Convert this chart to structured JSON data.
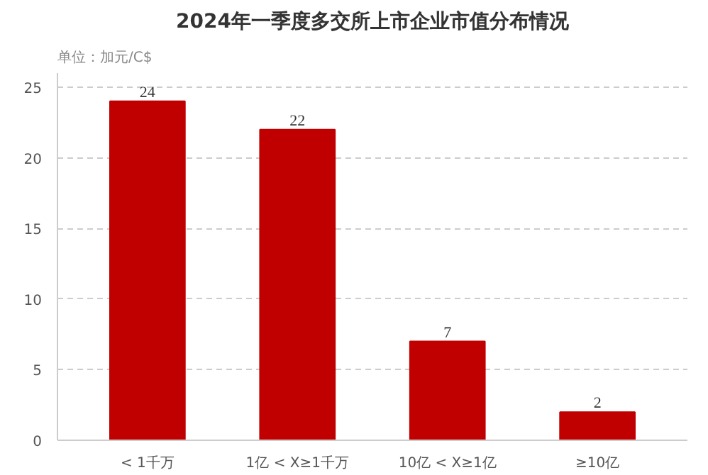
{
  "chart_data": {
    "type": "bar",
    "title": "2024年一季度多交所上市企业市值分布情况",
    "ylabel": "单位：加元/C$",
    "categories": [
      "< 1千万",
      "1亿 < X≥1千万",
      "10亿 < X≥1亿",
      "≥10亿"
    ],
    "values": [
      24,
      22,
      7,
      2
    ],
    "color": "#c00000",
    "data_labels": true,
    "ylim": [
      0,
      26
    ],
    "yticks": [
      0,
      5,
      10,
      15,
      20,
      25
    ],
    "grid": "y"
  }
}
